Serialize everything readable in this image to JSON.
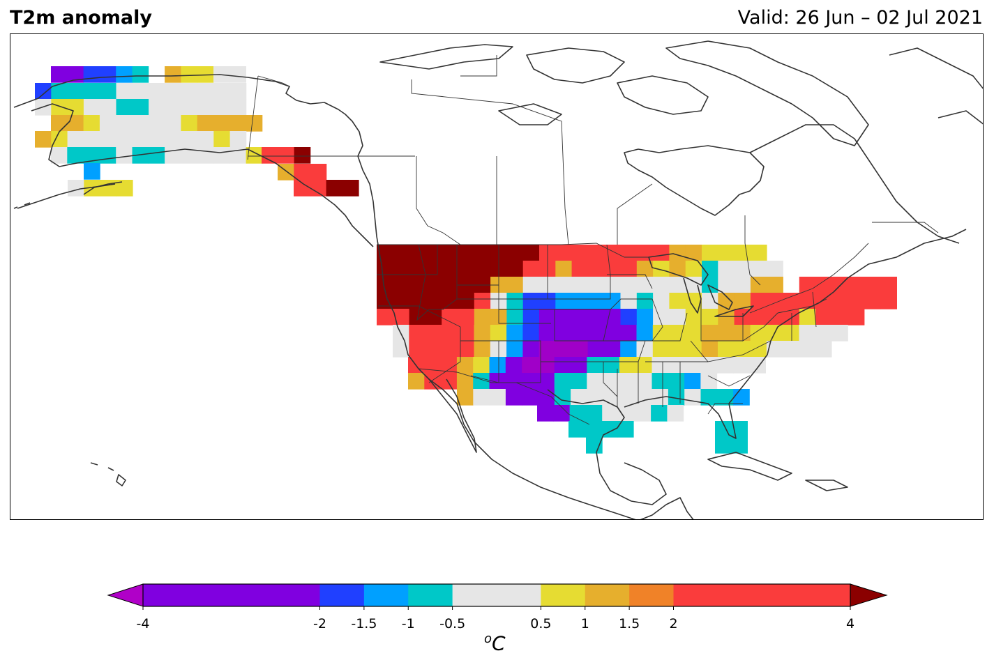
{
  "header": {
    "title": "T2m anomaly",
    "valid": "Valid: 26 Jun – 02 Jul 2021"
  },
  "colorbar": {
    "unit_sup": "o",
    "unit": "C",
    "extend": "both",
    "under_color": "#b000c8",
    "over_color": "#8b0000",
    "levels": [
      -4,
      -2,
      -1.5,
      -1,
      -0.5,
      0.5,
      1,
      1.5,
      2,
      4
    ],
    "tick_labels": [
      "-4",
      "-2",
      "-1.5",
      "-1",
      "-0.5",
      "0.5",
      "1",
      "1.5",
      "2",
      "4"
    ],
    "colors": [
      "#8000e0",
      "#2040ff",
      "#00a0ff",
      "#00c8c8",
      "#e6e6e6",
      "#e6dc32",
      "#e6af2d",
      "#f08228",
      "#fa3c3c"
    ]
  },
  "map_data": {
    "type": "gridded anomaly map",
    "variable": "2 m temperature anomaly",
    "region": "North America",
    "grid": "coarse lat/lon cells shaded by anomaly class",
    "features": [
      "coastlines",
      "country borders",
      "US state borders",
      "Canadian province borders"
    ]
  }
}
